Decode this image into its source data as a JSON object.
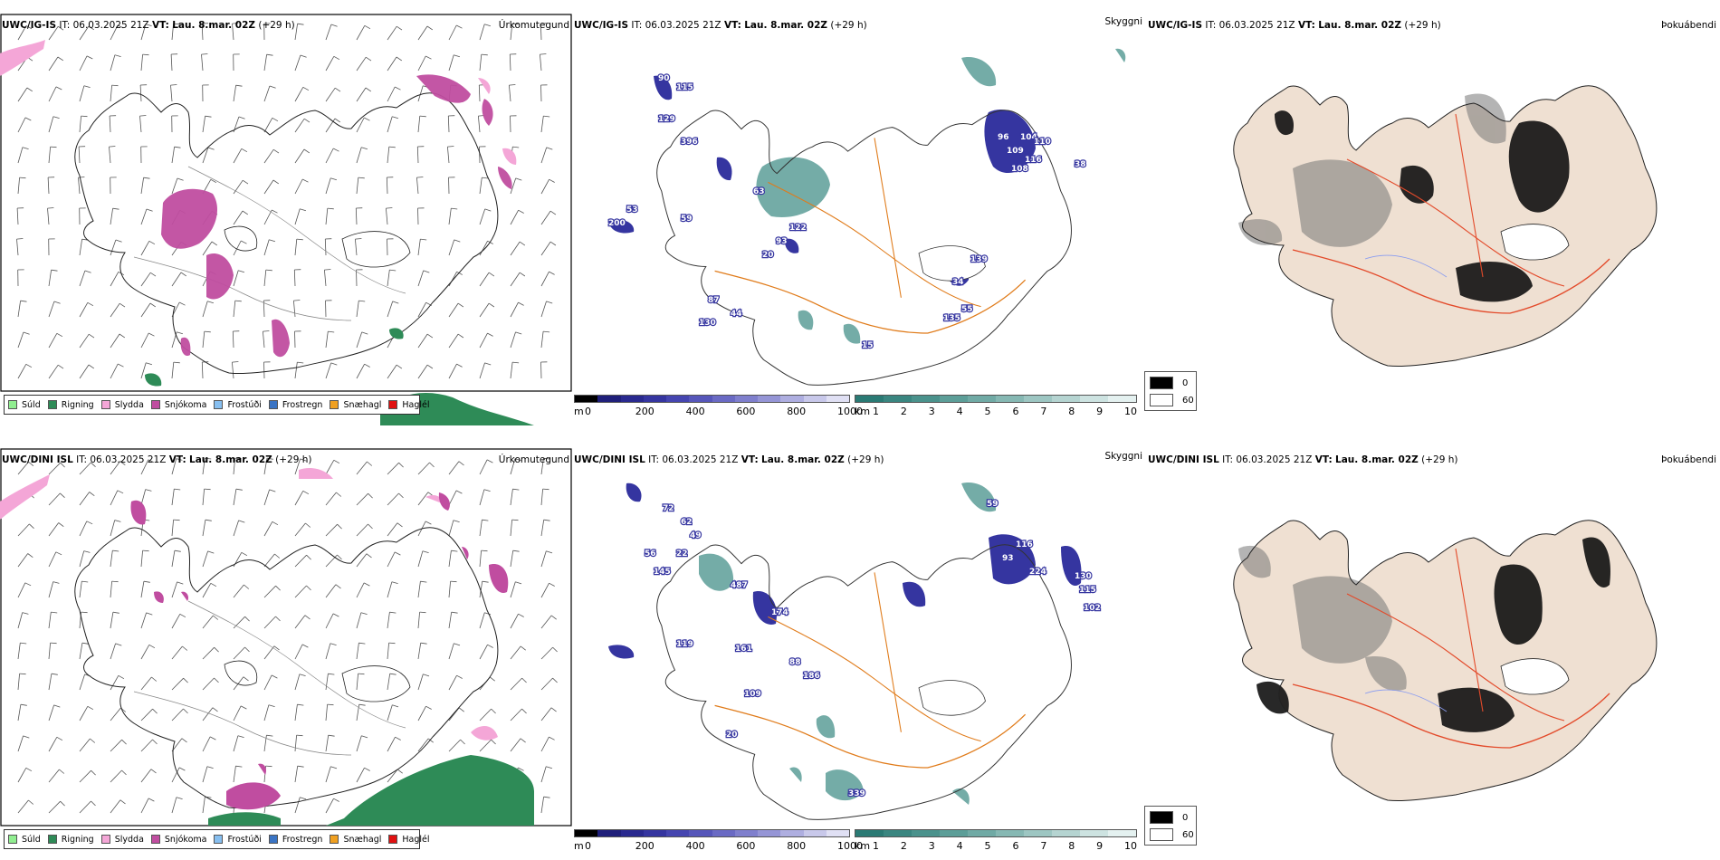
{
  "rows": [
    {
      "id": "igis",
      "model": "UWC/IG-IS",
      "it_label": "IT:",
      "it_value": "06.03.2025 21Z",
      "vt_label": "VT:",
      "vt_value": "Lau. 8.mar. 02Z",
      "lead": "(+29 h)"
    },
    {
      "id": "dini",
      "model": "UWC/DINI ISL",
      "it_label": "IT:",
      "it_value": "06.03.2025 21Z",
      "vt_label": "VT:",
      "vt_value": "Lau. 8.mar. 02Z",
      "lead": "(+29 h)"
    }
  ],
  "panel_labels": {
    "precip_type": "Úrkomutegund",
    "visibility": "Skyggni",
    "fog": "Þokuábendi"
  },
  "precip_legend": [
    {
      "label": "Súld",
      "color": "#90ee90"
    },
    {
      "label": "Rigning",
      "color": "#2e8b57"
    },
    {
      "label": "Slydda",
      "color": "#f4a6d7"
    },
    {
      "label": "Snjókoma",
      "color": "#c04da0"
    },
    {
      "label": "Frostúði",
      "color": "#87bff0"
    },
    {
      "label": "Frostregn",
      "color": "#3a74c4"
    },
    {
      "label": "Snæhagl",
      "color": "#f0a020"
    },
    {
      "label": "Haglél",
      "color": "#e01010"
    }
  ],
  "cloud_base_scale": {
    "unit": "m",
    "ticks": [
      "0",
      "200",
      "400",
      "600",
      "800",
      "1000"
    ],
    "colors": [
      "#000000",
      "#1f1f7a",
      "#29298f",
      "#3535a0",
      "#4545b0",
      "#5656ba",
      "#6a6ac4",
      "#7f7fcd",
      "#9595d6",
      "#aeaee0",
      "#c8c8ea",
      "#e0e0f4"
    ]
  },
  "visibility_scale": {
    "unit": "km",
    "ticks": [
      "1",
      "2",
      "3",
      "4",
      "5",
      "6",
      "7",
      "8",
      "9",
      "10"
    ],
    "colors": [
      "#2a7a74",
      "#3a8680",
      "#4a928c",
      "#5c9e98",
      "#70aaa5",
      "#86b8b3",
      "#9dc6c2",
      "#b5d4d1",
      "#cde3e1",
      "#e4f1f0"
    ]
  },
  "fog_legend": {
    "items": [
      {
        "label": "0",
        "color": "#000000"
      },
      {
        "label": "60",
        "color": "#ffffff"
      }
    ]
  },
  "cloud_labels": {
    "igis": [
      "90",
      "115",
      "129",
      "396",
      "63",
      "53",
      "59",
      "200",
      "122",
      "93",
      "20",
      "87",
      "44",
      "130",
      "96",
      "109",
      "104",
      "110",
      "116",
      "108",
      "38",
      "139",
      "34",
      "55",
      "135",
      "15"
    ],
    "dini": [
      "72",
      "62",
      "49",
      "22",
      "56",
      "145",
      "487",
      "174",
      "119",
      "161",
      "88",
      "186",
      "109",
      "20",
      "339",
      "116",
      "59",
      "93",
      "224",
      "130",
      "115",
      "102"
    ]
  }
}
